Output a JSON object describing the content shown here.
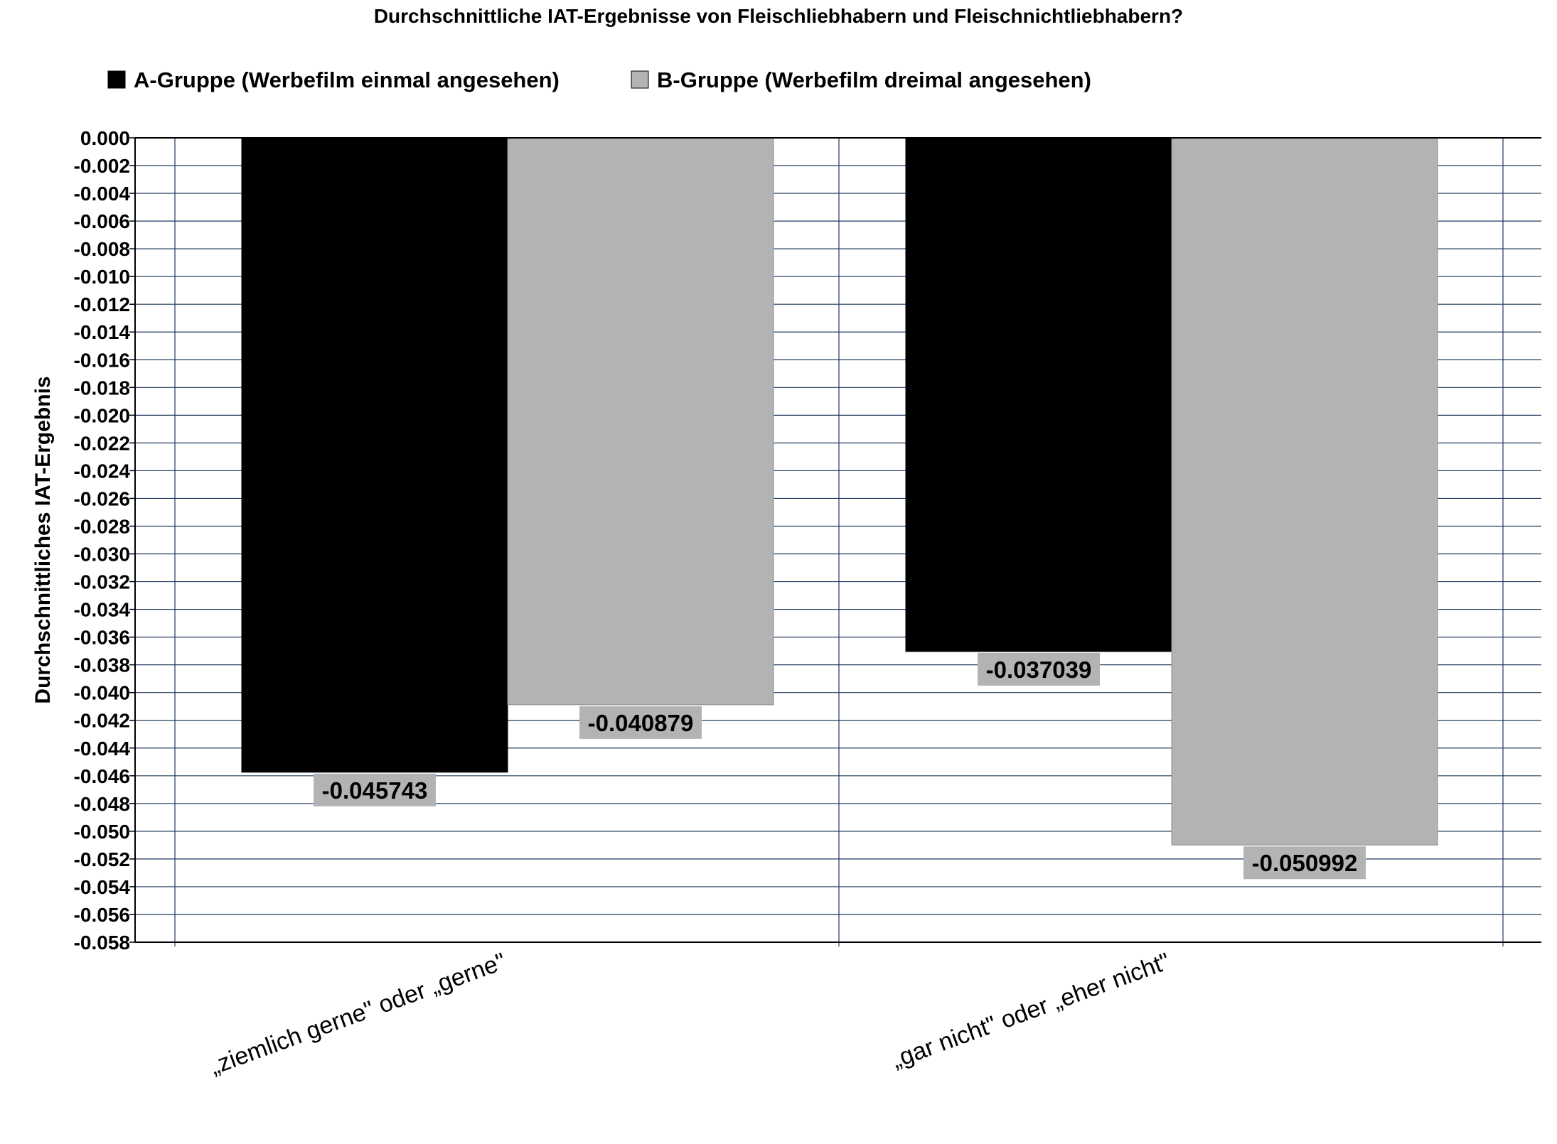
{
  "chart_data": {
    "type": "bar",
    "title": "Durchschnittliche IAT-Ergebnisse von Fleischliebhabern und Fleischnichtliebhabern?",
    "xlabel": "",
    "ylabel": "Durchschnittliches IAT-Ergebnis",
    "categories": [
      "„ziemlich gerne\" oder „gerne\"",
      "„gar nicht\" oder „eher nicht\""
    ],
    "series": [
      {
        "name": "A-Gruppe (Werbefilm einmal angesehen)",
        "color": "#000000",
        "values": [
          -0.045743,
          -0.037039
        ]
      },
      {
        "name": "B-Gruppe (Werbefilm dreimal angesehen)",
        "color": "#b3b3b3",
        "values": [
          -0.040879,
          -0.050992
        ]
      }
    ],
    "data_labels": [
      [
        "-0.045743",
        "-0.037039"
      ],
      [
        "-0.040879",
        "-0.050992"
      ]
    ],
    "ylim": [
      -0.058,
      0
    ],
    "ytick_step": 0.002,
    "grid": true,
    "legend_position": "top",
    "colors": {
      "grid": "#1f3a5f",
      "label_bg": "#b3b3b3"
    }
  }
}
